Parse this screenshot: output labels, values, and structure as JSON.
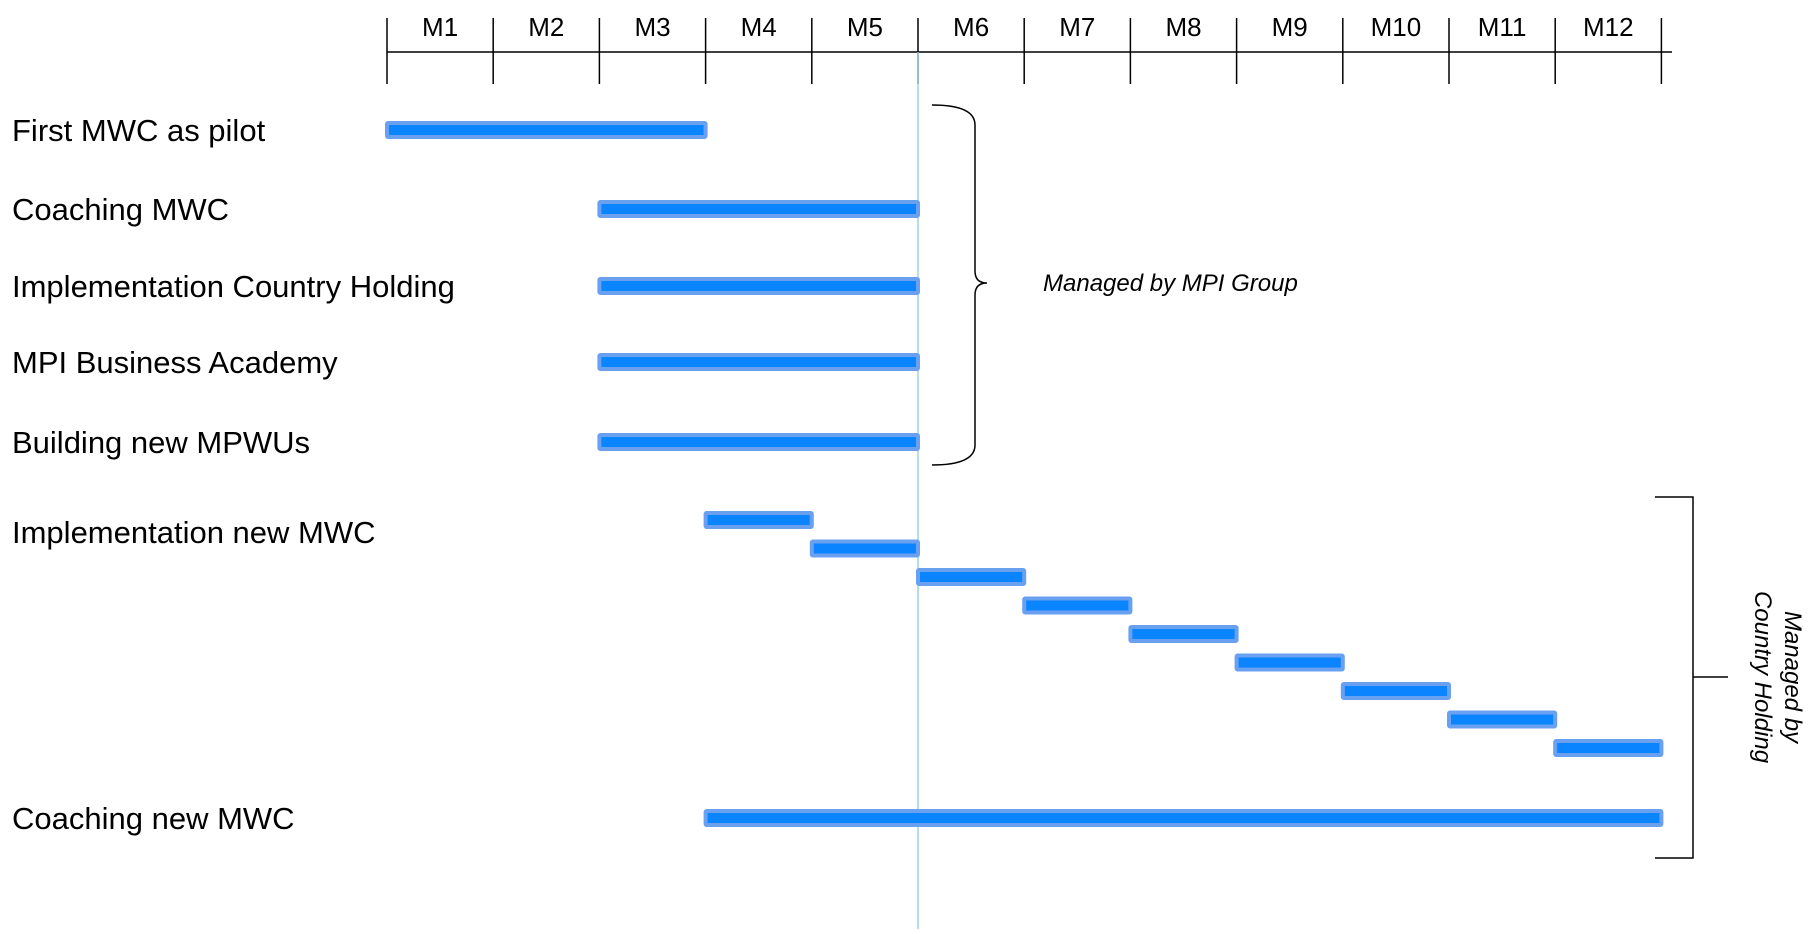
{
  "chart_data": {
    "type": "gantt",
    "x_axis": {
      "unit": "month",
      "ticks": [
        "M1",
        "M2",
        "M3",
        "M4",
        "M5",
        "M6",
        "M7",
        "M8",
        "M9",
        "M10",
        "M11",
        "M12"
      ],
      "position": "top"
    },
    "today_marker_month": 6,
    "tasks": [
      {
        "label": "First MWC as pilot",
        "start": 1,
        "end": 3
      },
      {
        "label": "Coaching MWC",
        "start": 3,
        "end": 5
      },
      {
        "label": "Implementation Country Holding",
        "start": 3,
        "end": 5
      },
      {
        "label": "MPI Business Academy",
        "start": 3,
        "end": 5
      },
      {
        "label": "Building new MPWUs",
        "start": 3,
        "end": 5
      },
      {
        "label": "Implementation new MWC",
        "segments": [
          {
            "start": 4,
            "end": 4
          },
          {
            "start": 5,
            "end": 5
          },
          {
            "start": 6,
            "end": 6
          },
          {
            "start": 7,
            "end": 7
          },
          {
            "start": 8,
            "end": 8
          },
          {
            "start": 9,
            "end": 9
          },
          {
            "start": 10,
            "end": 10
          },
          {
            "start": 11,
            "end": 11
          },
          {
            "start": 12,
            "end": 12
          }
        ]
      },
      {
        "label": "Coaching new MWC",
        "start": 4,
        "end": 12
      }
    ],
    "groups": [
      {
        "label": "Managed by MPI Group",
        "tasks": [
          0,
          1,
          2,
          3,
          4
        ]
      },
      {
        "label_lines": [
          "Managed by",
          "Country Holding"
        ],
        "tasks": [
          5,
          6
        ]
      }
    ],
    "colors": {
      "bar_fill": "#0a84ff",
      "bar_border": "#6aa0f0",
      "axis": "#000000",
      "today_line": "#9fd3e0"
    }
  }
}
